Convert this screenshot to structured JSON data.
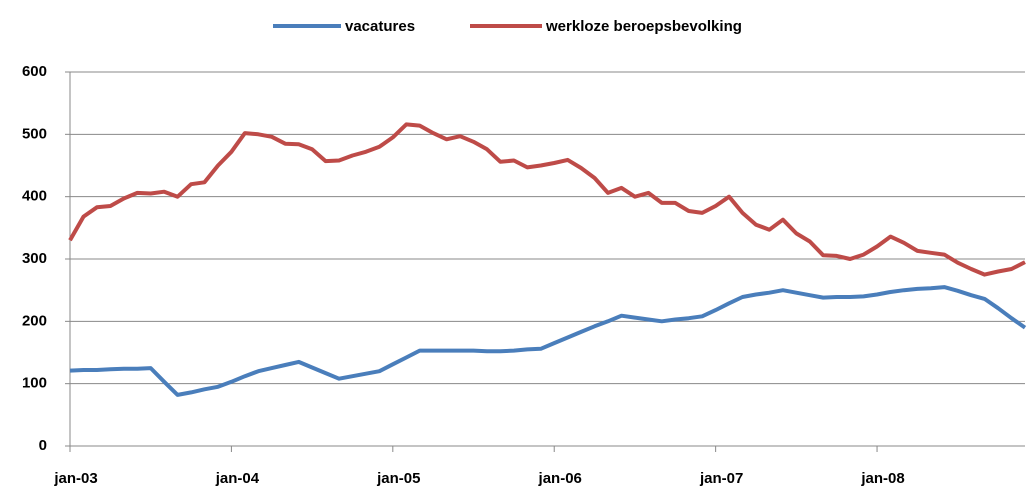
{
  "chart_data": {
    "type": "line",
    "categories": [
      "jan-03",
      null,
      null,
      null,
      null,
      null,
      null,
      null,
      null,
      null,
      null,
      null,
      "jan-04",
      null,
      null,
      null,
      null,
      null,
      null,
      null,
      null,
      null,
      null,
      null,
      "jan-05",
      null,
      null,
      null,
      null,
      null,
      null,
      null,
      null,
      null,
      null,
      null,
      "jan-06",
      null,
      null,
      null,
      null,
      null,
      null,
      null,
      null,
      null,
      null,
      null,
      "jan-07",
      null,
      null,
      null,
      null,
      null,
      null,
      null,
      null,
      null,
      null,
      null,
      "jan-08",
      null,
      null,
      null,
      null,
      null,
      null,
      null,
      null,
      null,
      null,
      null
    ],
    "series": [
      {
        "name": "vacatures",
        "color": "#4a7ebb",
        "values": [
          121,
          122,
          122,
          123,
          124,
          124,
          125,
          103,
          82,
          86,
          91,
          95,
          103,
          112,
          120,
          125,
          130,
          135,
          126,
          117,
          108,
          112,
          116,
          120,
          131,
          142,
          153,
          153,
          153,
          153,
          153,
          152,
          152,
          153,
          155,
          156,
          165,
          174,
          183,
          192,
          200,
          209,
          206,
          203,
          200,
          203,
          205,
          208,
          218,
          229,
          239,
          243,
          246,
          250,
          246,
          242,
          238,
          239,
          239,
          240,
          243,
          247,
          250,
          252,
          253,
          255,
          249,
          242,
          236,
          221,
          205,
          190
        ]
      },
      {
        "name": "werkloze beroepsbevolking",
        "color": "#be4b48",
        "values": [
          330,
          368,
          383,
          385,
          397,
          406,
          405,
          408,
          400,
          420,
          423,
          450,
          472,
          502,
          500,
          496,
          485,
          484,
          476,
          457,
          458,
          466,
          472,
          480,
          495,
          516,
          514,
          502,
          492,
          497,
          488,
          476,
          456,
          458,
          447,
          450,
          454,
          459,
          446,
          430,
          406,
          414,
          400,
          406,
          390,
          390,
          377,
          374,
          385,
          400,
          374,
          355,
          347,
          363,
          341,
          328,
          306,
          305,
          300,
          307,
          320,
          336,
          326,
          313,
          310,
          307,
          294,
          284,
          275,
          280,
          284,
          295
        ]
      }
    ],
    "ylim": [
      0,
      600
    ],
    "yticks": [
      0,
      100,
      200,
      300,
      400,
      500,
      600
    ],
    "grid": true,
    "legend": "top"
  }
}
